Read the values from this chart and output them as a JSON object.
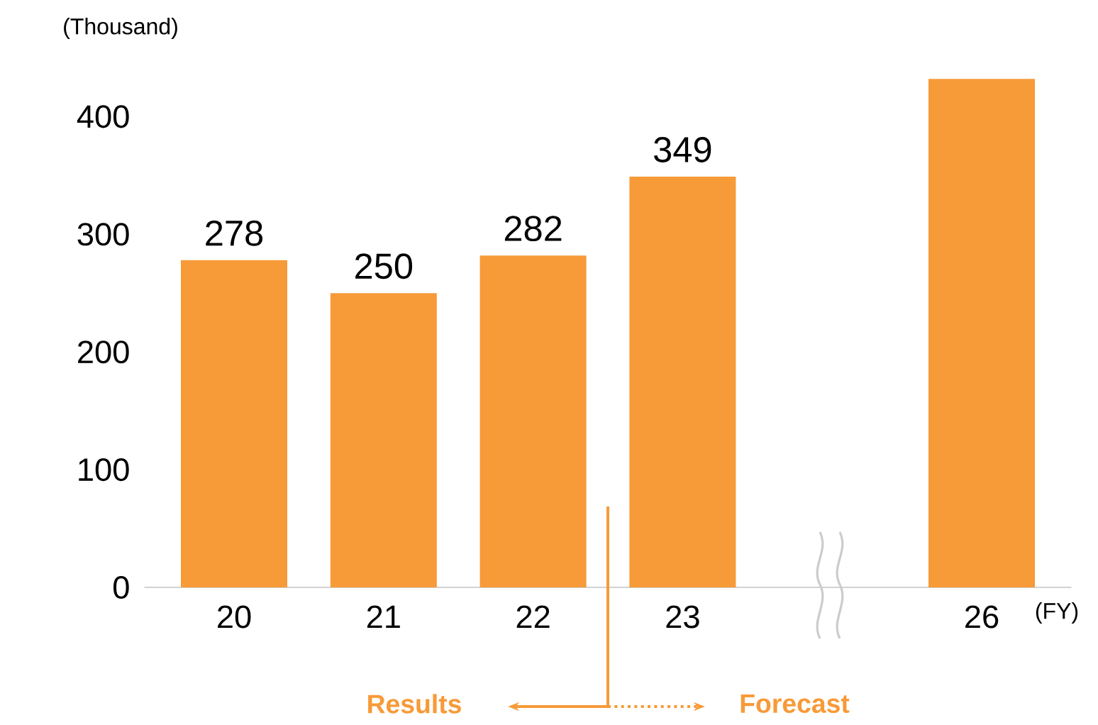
{
  "chart_data": {
    "type": "bar",
    "categories": [
      "20",
      "21",
      "22",
      "23",
      null,
      "26"
    ],
    "values": [
      278,
      250,
      282,
      349,
      null,
      432
    ],
    "value_labels": [
      "278",
      "250",
      "282",
      "349",
      null,
      null
    ],
    "color": "#f79a38",
    "ylim": [
      0,
      440
    ],
    "yticks": [
      0,
      100,
      200,
      300,
      400
    ],
    "annotations": [
      "(Thousand)",
      "(FY)",
      "Results",
      "Forecast"
    ]
  }
}
